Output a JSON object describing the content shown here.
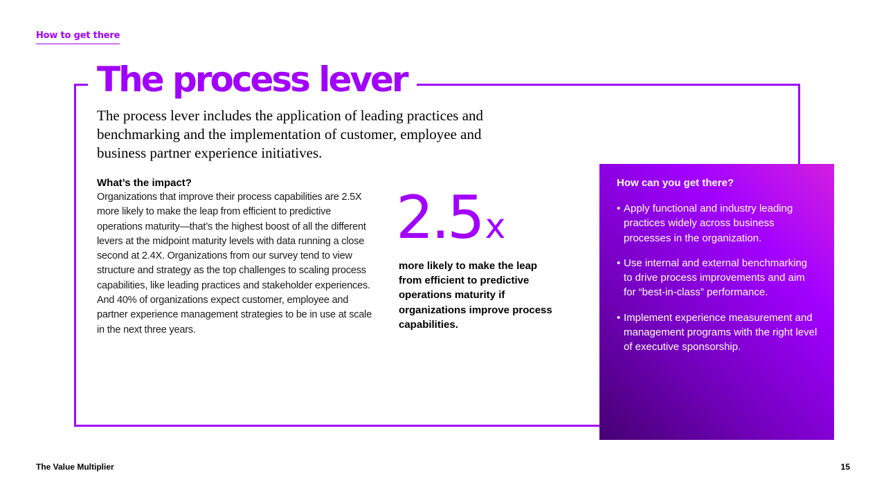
{
  "header": {
    "section_link": "How to get there"
  },
  "main": {
    "title": "The process lever",
    "intro": "The process lever includes the application of leading practices and benchmarking and the implementation of customer, employee and business partner experience initiatives.",
    "impact": {
      "heading": "What’s the impact?",
      "body": "Organizations that improve their process capabilities are 2.5X more likely to make the leap from efficient to predictive operations maturity—that’s the highest boost of all the different levers at the midpoint maturity levels with data running a close second at 2.4X. Organizations from our survey tend to view structure and strategy as the top challenges to scaling process capabilities, like leading practices and stakeholder experiences. And 40% of organizations expect customer, employee and partner experience management strategies to be in use at scale in the next three years."
    },
    "stat": {
      "number": "2.5",
      "suffix": "x",
      "caption": "more likely to make the leap from efficient to predictive operations maturity if organizations improve process capabilities."
    }
  },
  "panel": {
    "heading": "How can you get there?",
    "items": [
      "Apply functional and industry leading practices widely across business processes in the organization.",
      "Use internal and external benchmarking to drive process improvements and aim for “best-in-class” performance.",
      "Implement experience measurement and management programs with the right level of executive sponsorship."
    ],
    "bullet": "•"
  },
  "footer": {
    "publication": "The Value Multiplier",
    "page_number": "15"
  },
  "colors": {
    "accent": "#a100ff",
    "panel_dark": "#460073",
    "panel_light": "#d21ee0"
  }
}
